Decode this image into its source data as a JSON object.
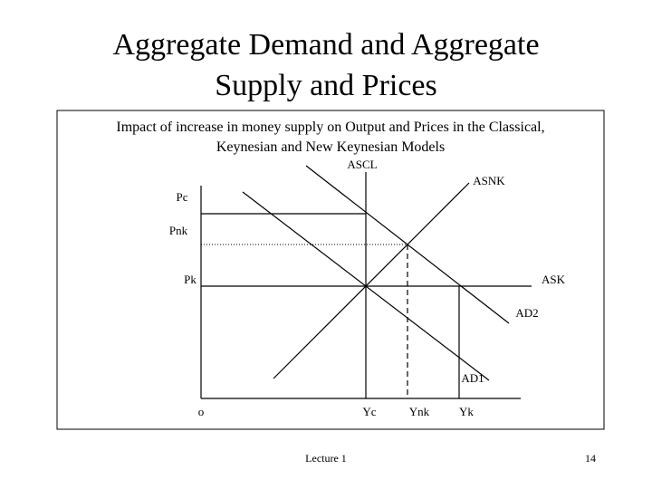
{
  "header": {
    "title_lines": [
      "Aggregate Demand and Aggregate",
      "Supply and Prices"
    ]
  },
  "figure": {
    "caption_lines": [
      "Impact of increase in money supply on Output and Prices in the Classical,",
      "Keynesian and New Keynesian Models"
    ],
    "curve_labels": {
      "ascl": "ASCL",
      "asnk": "ASNK",
      "ask": "ASK",
      "ad1": "AD1",
      "ad2": "AD2"
    },
    "price_labels": {
      "pc": "Pc",
      "pnk": "Pnk",
      "pk": "Pk"
    },
    "output_labels": {
      "origin": "o",
      "yc": "Yc",
      "ynk": "Ynk",
      "yk": "Yk"
    }
  },
  "footer": {
    "left": "Lecture 1",
    "page": "14"
  }
}
